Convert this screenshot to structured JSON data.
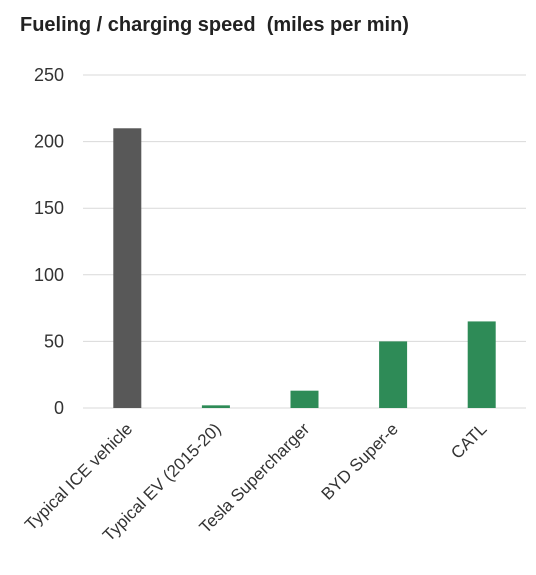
{
  "chart_data": {
    "type": "bar",
    "title": "Fueling / charging speed  (miles per min)",
    "xlabel": "",
    "ylabel": "",
    "categories": [
      "Typical ICE vehicle",
      "Typical EV (2015-20)",
      "Tesla Supercharger",
      "BYD Super-e",
      "CATL"
    ],
    "values": [
      210,
      2,
      13,
      50,
      65
    ],
    "colors": [
      "#585858",
      "#2e8b57",
      "#2e8b57",
      "#2e8b57",
      "#2e8b57"
    ],
    "ylim": [
      0,
      250
    ],
    "yticks": [
      0,
      50,
      100,
      150,
      200,
      250
    ],
    "grid": true,
    "legend": false
  }
}
